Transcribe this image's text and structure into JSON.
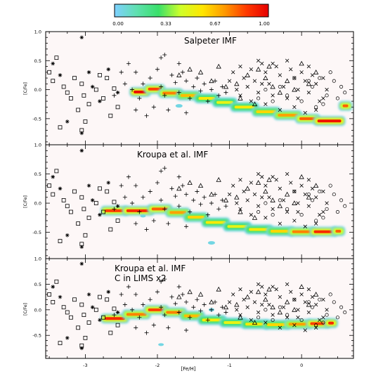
{
  "colorbar": {
    "ticks": [
      "0.00",
      "0.33",
      "0.67",
      "1.00"
    ],
    "colors": [
      "#7ed0ff",
      "#5fe0b0",
      "#39e06a",
      "#cfff2a",
      "#ffe600",
      "#ff9a00",
      "#ff3a00",
      "#e60000"
    ]
  },
  "chart_data": {
    "type": "scatter",
    "xlabel": "[Fe/H]",
    "ylabel": "[C/Fe]",
    "xlim": [
      -3.55,
      0.72
    ],
    "ylim": [
      -0.95,
      1.0
    ],
    "x_ticks": [
      "-3",
      "-2",
      "-1",
      "0"
    ],
    "y_ticks": [
      "1.0",
      "0.5",
      "0.0",
      "-0.5"
    ],
    "panels": [
      {
        "title": [
          "Salpeter IMF"
        ],
        "density_track": [
          {
            "x": -2.35,
            "y": -0.04,
            "level": 0.97
          },
          {
            "x": -2.15,
            "y": 0.01,
            "level": 0.85
          },
          {
            "x": -1.95,
            "y": -0.06,
            "level": 0.75
          },
          {
            "x": -1.7,
            "y": -0.1,
            "level": 0.65
          },
          {
            "x": -1.45,
            "y": -0.15,
            "level": 0.55
          },
          {
            "x": -1.2,
            "y": -0.22,
            "level": 0.5
          },
          {
            "x": -0.95,
            "y": -0.3,
            "level": 0.55
          },
          {
            "x": -0.65,
            "y": -0.38,
            "level": 0.6
          },
          {
            "x": -0.35,
            "y": -0.44,
            "level": 0.7
          },
          {
            "x": -0.05,
            "y": -0.5,
            "level": 0.8
          },
          {
            "x": 0.2,
            "y": -0.54,
            "level": 0.95
          },
          {
            "x": 0.55,
            "y": -0.28,
            "level": 0.8
          }
        ]
      },
      {
        "title": [
          "Kroupa et al. IMF"
        ],
        "density_track": [
          {
            "x": -2.75,
            "y": -0.13,
            "level": 0.85
          },
          {
            "x": -2.45,
            "y": -0.13,
            "level": 0.9
          },
          {
            "x": -2.1,
            "y": -0.1,
            "level": 0.8
          },
          {
            "x": -1.85,
            "y": -0.16,
            "level": 0.7
          },
          {
            "x": -1.6,
            "y": -0.24,
            "level": 0.6
          },
          {
            "x": -1.35,
            "y": -0.33,
            "level": 0.55
          },
          {
            "x": -1.05,
            "y": -0.4,
            "level": 0.5
          },
          {
            "x": -0.75,
            "y": -0.45,
            "level": 0.55
          },
          {
            "x": -0.45,
            "y": -0.48,
            "level": 0.6
          },
          {
            "x": -0.15,
            "y": -0.49,
            "level": 0.75
          },
          {
            "x": 0.15,
            "y": -0.49,
            "level": 0.9
          },
          {
            "x": 0.45,
            "y": -0.48,
            "level": 0.8
          }
        ]
      },
      {
        "title": [
          "Kroupa et al. IMF",
          "C in LIMS x2"
        ],
        "density_track": [
          {
            "x": -2.75,
            "y": -0.17,
            "level": 0.9
          },
          {
            "x": -2.45,
            "y": -0.09,
            "level": 0.75
          },
          {
            "x": -2.15,
            "y": 0.0,
            "level": 0.85
          },
          {
            "x": -1.9,
            "y": -0.05,
            "level": 0.75
          },
          {
            "x": -1.65,
            "y": -0.12,
            "level": 0.65
          },
          {
            "x": -1.4,
            "y": -0.2,
            "level": 0.55
          },
          {
            "x": -1.1,
            "y": -0.25,
            "level": 0.5
          },
          {
            "x": -0.8,
            "y": -0.28,
            "level": 0.55
          },
          {
            "x": -0.5,
            "y": -0.29,
            "level": 0.6
          },
          {
            "x": -0.2,
            "y": -0.28,
            "level": 0.7
          },
          {
            "x": 0.1,
            "y": -0.27,
            "level": 0.85
          },
          {
            "x": 0.35,
            "y": -0.26,
            "level": 0.9
          }
        ]
      }
    ],
    "observations": {
      "square": [
        [
          -3.4,
          0.55
        ],
        [
          -3.5,
          0.3
        ],
        [
          -3.45,
          0.15
        ],
        [
          -3.3,
          0.05
        ],
        [
          -3.25,
          -0.05
        ],
        [
          -3.05,
          0.1
        ],
        [
          -3.02,
          -0.1
        ],
        [
          -2.95,
          -0.25
        ],
        [
          -2.85,
          0.0
        ],
        [
          -2.8,
          0.25
        ],
        [
          -2.7,
          0.2
        ],
        [
          -2.65,
          -0.45
        ],
        [
          -3.1,
          -0.35
        ],
        [
          -3.0,
          -0.55
        ],
        [
          -3.35,
          -0.65
        ],
        [
          -3.2,
          -0.15
        ],
        [
          -2.6,
          0.02
        ],
        [
          -2.55,
          -0.3
        ],
        [
          -3.15,
          0.2
        ],
        [
          -2.75,
          -0.15
        ],
        [
          -3.05,
          -0.7
        ]
      ],
      "star": [
        [
          -3.45,
          0.45
        ],
        [
          -3.35,
          0.25
        ],
        [
          -3.25,
          -0.55
        ],
        [
          -3.05,
          0.9
        ],
        [
          -2.9,
          0.05
        ],
        [
          -2.8,
          -0.2
        ],
        [
          -2.68,
          0.35
        ],
        [
          -2.55,
          -0.05
        ],
        [
          -3.05,
          -0.75
        ],
        [
          -2.95,
          0.3
        ]
      ],
      "plus": [
        [
          -2.4,
          0.45
        ],
        [
          -2.3,
          0.3
        ],
        [
          -2.2,
          0.1
        ],
        [
          -2.1,
          0.2
        ],
        [
          -2.0,
          0.35
        ],
        [
          -1.95,
          0.05
        ],
        [
          -1.9,
          -0.1
        ],
        [
          -1.8,
          0.25
        ],
        [
          -1.75,
          0.12
        ],
        [
          -1.7,
          -0.05
        ],
        [
          -1.65,
          0.3
        ],
        [
          -1.6,
          0.15
        ],
        [
          -1.55,
          -0.15
        ],
        [
          -1.5,
          0.05
        ],
        [
          -1.45,
          0.2
        ],
        [
          -1.4,
          -0.02
        ],
        [
          -1.35,
          0.1
        ],
        [
          -1.3,
          -0.2
        ],
        [
          -1.25,
          0.0
        ],
        [
          -1.2,
          0.15
        ],
        [
          -1.15,
          -0.1
        ],
        [
          -1.1,
          0.05
        ],
        [
          -2.05,
          -0.3
        ],
        [
          -1.85,
          -0.35
        ],
        [
          -1.6,
          -0.4
        ],
        [
          -2.25,
          -0.15
        ],
        [
          -2.45,
          0.1
        ],
        [
          -1.95,
          0.55
        ],
        [
          -2.5,
          0.3
        ],
        [
          -2.15,
          -0.45
        ],
        [
          -2.3,
          -0.35
        ],
        [
          -1.9,
          0.6
        ],
        [
          -1.7,
          0.45
        ],
        [
          -2.6,
          -0.1
        ],
        [
          -2.35,
          0.0
        ],
        [
          -1.05,
          -0.05
        ]
      ],
      "triangle": [
        [
          -1.7,
          0.25
        ],
        [
          -1.55,
          0.35
        ],
        [
          -1.4,
          0.3
        ],
        [
          -1.25,
          0.15
        ],
        [
          -1.05,
          0.05
        ],
        [
          -0.9,
          0.1
        ],
        [
          -0.75,
          0.25
        ],
        [
          -0.6,
          0.35
        ],
        [
          -0.5,
          0.2
        ],
        [
          -0.4,
          0.05
        ],
        [
          -0.3,
          -0.05
        ],
        [
          -0.2,
          0.15
        ],
        [
          -0.1,
          0.0
        ],
        [
          0.0,
          0.45
        ],
        [
          0.1,
          0.1
        ],
        [
          0.2,
          0.3
        ],
        [
          -0.85,
          -0.15
        ],
        [
          -0.65,
          -0.25
        ],
        [
          -1.15,
          0.4
        ],
        [
          -0.45,
          0.4
        ]
      ],
      "cross": [
        [
          -0.95,
          0.3
        ],
        [
          -0.85,
          0.4
        ],
        [
          -0.8,
          0.2
        ],
        [
          -0.75,
          0.05
        ],
        [
          -0.7,
          0.35
        ],
        [
          -0.65,
          0.15
        ],
        [
          -0.6,
          -0.05
        ],
        [
          -0.55,
          0.45
        ],
        [
          -0.5,
          0.3
        ],
        [
          -0.45,
          0.1
        ],
        [
          -0.4,
          -0.1
        ],
        [
          -0.35,
          0.4
        ],
        [
          -0.3,
          0.25
        ],
        [
          -0.25,
          0.05
        ],
        [
          -0.2,
          -0.15
        ],
        [
          -0.15,
          0.35
        ],
        [
          -0.1,
          0.2
        ],
        [
          -0.05,
          0.0
        ],
        [
          0.0,
          0.3
        ],
        [
          0.05,
          0.15
        ],
        [
          0.1,
          -0.05
        ],
        [
          0.15,
          0.25
        ],
        [
          0.2,
          0.1
        ],
        [
          0.25,
          -0.2
        ],
        [
          0.3,
          0.2
        ],
        [
          0.35,
          0.0
        ],
        [
          -0.9,
          0.0
        ],
        [
          -0.7,
          -0.2
        ],
        [
          -0.5,
          -0.25
        ],
        [
          -0.3,
          -0.35
        ],
        [
          -0.1,
          -0.3
        ],
        [
          0.05,
          -0.4
        ],
        [
          0.2,
          -0.35
        ],
        [
          -0.6,
          0.5
        ],
        [
          -0.4,
          0.45
        ],
        [
          -0.2,
          0.5
        ],
        [
          0.1,
          0.4
        ],
        [
          -1.0,
          0.15
        ],
        [
          -0.85,
          -0.1
        ],
        [
          0.3,
          -0.15
        ],
        [
          -0.55,
          0.1
        ],
        [
          -0.05,
          -0.15
        ]
      ],
      "circle": [
        [
          0.15,
          0.05
        ],
        [
          0.25,
          0.2
        ],
        [
          0.35,
          -0.1
        ],
        [
          0.45,
          0.15
        ],
        [
          0.5,
          -0.15
        ],
        [
          0.55,
          0.05
        ],
        [
          0.6,
          -0.05
        ],
        [
          0.4,
          0.3
        ],
        [
          0.3,
          -0.25
        ],
        [
          0.2,
          -0.3
        ],
        [
          0.1,
          0.15
        ],
        [
          0.0,
          -0.2
        ],
        [
          -0.1,
          0.2
        ],
        [
          -0.2,
          -0.1
        ],
        [
          -0.3,
          0.05
        ],
        [
          -0.4,
          -0.2
        ],
        [
          -0.5,
          0.0
        ],
        [
          -0.6,
          -0.15
        ]
      ]
    }
  }
}
